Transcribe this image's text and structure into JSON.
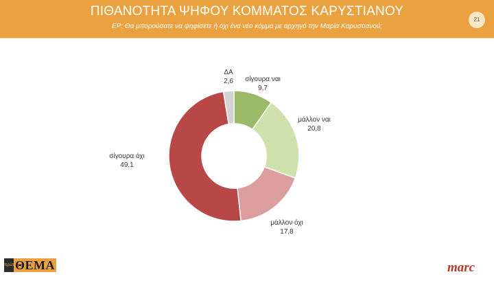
{
  "header": {
    "title": "ΠΙΘΑΝΟΤΗΤΑ ΨΗΦΟΥ ΚΟΜΜΑΤΟΣ ΚΑΡΥΣΤΙΑΝΟΥ",
    "subtitle": "ΕΡ: Θα μπορούσατε να ψηφίσετε ή όχι ένα νέο κόμμα με αρχηγό την Μαρία Καρυστιανού;",
    "page_number": "21"
  },
  "chart_data": {
    "type": "pie",
    "variant": "donut",
    "slices": [
      {
        "label": "σίγουρα ναι",
        "value": 9.7,
        "display": "9,7",
        "color": "#9bbb6b"
      },
      {
        "label": "μάλλον ναι",
        "value": 20.8,
        "display": "20,8",
        "color": "#cfe1ad"
      },
      {
        "label": "μάλλον όχι",
        "value": 17.8,
        "display": "17,8",
        "color": "#dc9e9c"
      },
      {
        "label": "σίγουρα όχι",
        "value": 49.1,
        "display": "49,1",
        "color": "#b84747"
      },
      {
        "label": "ΔΑ",
        "value": 2.6,
        "display": "2,6",
        "color": "#d3d3d3"
      }
    ]
  },
  "footer": {
    "left_logo": "ΘΕΜΑ",
    "left_logo_tag": "πρώτο",
    "right_logo": "marc"
  }
}
